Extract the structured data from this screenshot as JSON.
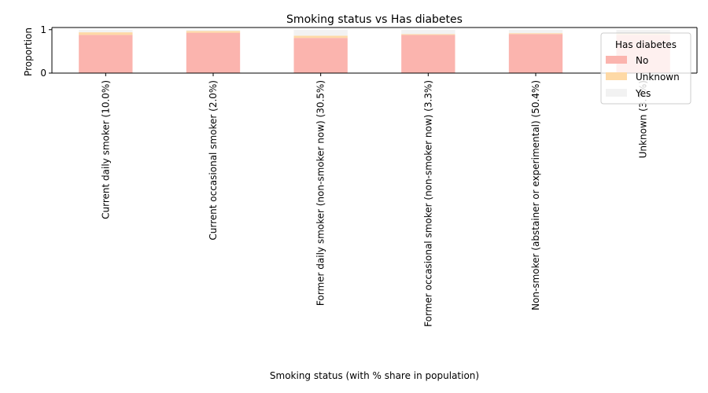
{
  "chart_data": {
    "type": "bar",
    "stacked": true,
    "title": "Smoking status vs Has diabetes",
    "xlabel": "Smoking status (with % share in population)",
    "ylabel": "Proportion",
    "ylim": [
      0,
      1.05
    ],
    "yticks": [
      "0",
      "1"
    ],
    "categories": [
      "Current daily smoker (10.0%)",
      "Current occasional smoker (2.0%)",
      "Former daily smoker (non-smoker now) (30.5%)",
      "Former occasional smoker (non-smoker now) (3.3%)",
      "Non-smoker (abstainer or experimental) (50.4%)",
      "Unknown (3.7%)"
    ],
    "series": [
      {
        "name": "No",
        "color": "#fbb4ae",
        "values": [
          0.88,
          0.93,
          0.81,
          0.88,
          0.9,
          0.88
        ]
      },
      {
        "name": "Unknown",
        "color": "#fed9a6",
        "values": [
          0.06,
          0.04,
          0.05,
          0.02,
          0.02,
          0.03
        ]
      },
      {
        "name": "Yes",
        "color": "#f2f2f2",
        "values": [
          0.06,
          0.03,
          0.14,
          0.1,
          0.08,
          0.09
        ]
      }
    ],
    "legend": {
      "title": "Has diabetes",
      "position": "top-right"
    },
    "grid": false
  }
}
